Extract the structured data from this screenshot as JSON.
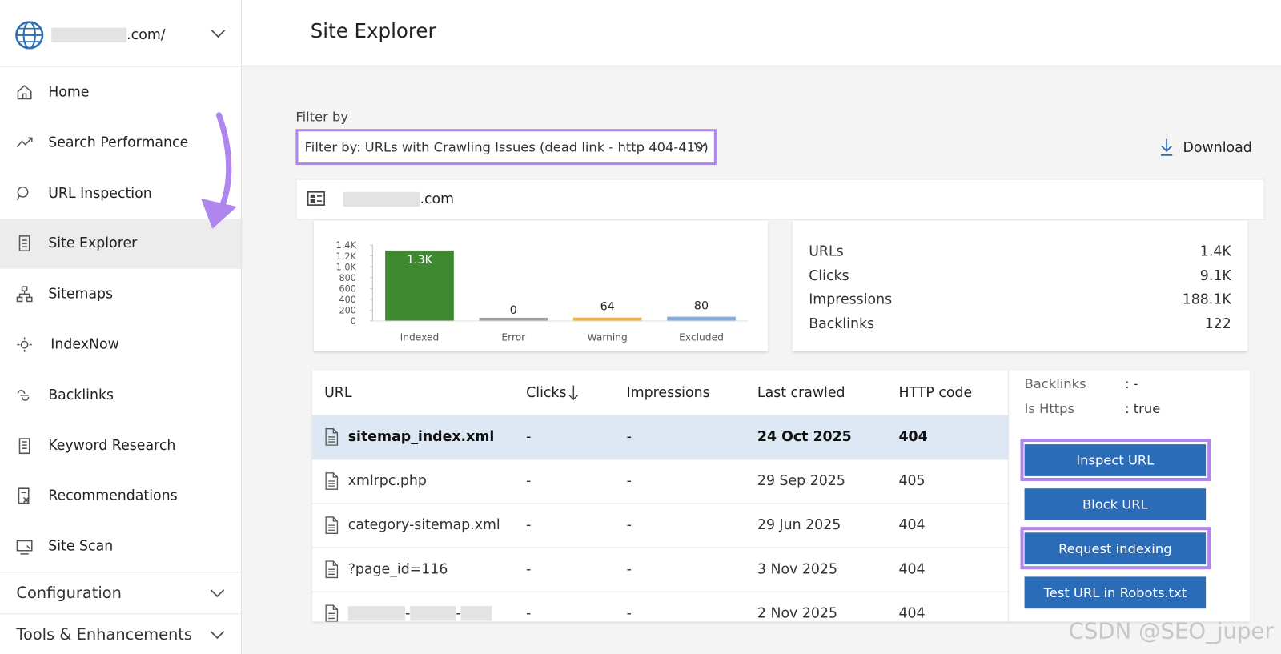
{
  "sidebar": {
    "site_suffix": ".com/",
    "nav": [
      "Home",
      "Search Performance",
      "URL Inspection",
      "Site Explorer",
      "Sitemaps",
      "IndexNow",
      "Backlinks",
      "Keyword Research",
      "Recommendations",
      "Site Scan"
    ],
    "active": 3,
    "sections": [
      "Configuration",
      "Tools & Enhancements"
    ]
  },
  "header": {
    "title": "Site Explorer"
  },
  "filter": {
    "label": "Filter by",
    "value": "Filter by: URLs with Crawling Issues (dead link - http 404-410)",
    "download": "Download"
  },
  "panel": {
    "site_suffix": ".com"
  },
  "chart": {
    "type": "bar",
    "categories": [
      "Indexed",
      "Error",
      "Warning",
      "Excluded"
    ],
    "values": [
      1300,
      0,
      64,
      80
    ],
    "value_labels": [
      "1.3K",
      "0",
      "64",
      "80"
    ],
    "colors": [
      "#3f8a31",
      "#9e9e9e",
      "#f2b233",
      "#85aede"
    ],
    "ylim": [
      0,
      1400
    ],
    "yticks": [
      0,
      200,
      400,
      600,
      800,
      {
        "value": 1000,
        "label": "1.0K"
      },
      {
        "value": 1200,
        "label": "1.2K"
      },
      {
        "value": 1400,
        "label": "1.4K"
      }
    ]
  },
  "stats": [
    [
      "URLs",
      "1.4K"
    ],
    [
      "Clicks",
      "9.1K"
    ],
    [
      "Impressions",
      "188.1K"
    ],
    [
      "Backlinks",
      "122"
    ]
  ],
  "table": {
    "columns": [
      "URL",
      "Clicks",
      "Impressions",
      "Last crawled",
      "HTTP code"
    ],
    "rows": [
      {
        "url": "sitemap_index.xml",
        "clicks": "-",
        "impressions": "-",
        "last_crawled": "24 Oct 2025",
        "http_code": "404"
      },
      {
        "url": "xmlrpc.php",
        "clicks": "-",
        "impressions": "-",
        "last_crawled": "29 Sep 2025",
        "http_code": "405"
      },
      {
        "url": "category-sitemap.xml",
        "clicks": "-",
        "impressions": "-",
        "last_crawled": "29 Jun 2025",
        "http_code": "404"
      },
      {
        "url": "?page_id=116",
        "clicks": "-",
        "impressions": "-",
        "last_crawled": "3 Nov 2025",
        "http_code": "404"
      },
      {
        "url": [
          "-",
          "-"
        ],
        "clicks": "-",
        "impressions": "-",
        "last_crawled": "2 Nov 2025",
        "http_code": "404"
      }
    ],
    "selected": 0
  },
  "details": {
    "fields": [
      [
        "Backlinks",
        ": -"
      ],
      [
        "Is Https",
        ": true"
      ]
    ],
    "buttons": [
      "Inspect URL",
      "Block URL",
      "Request indexing",
      "Test URL in Robots.txt"
    ],
    "highlighted": [
      0,
      2
    ]
  },
  "watermark": "CSDN @SEO_juper"
}
